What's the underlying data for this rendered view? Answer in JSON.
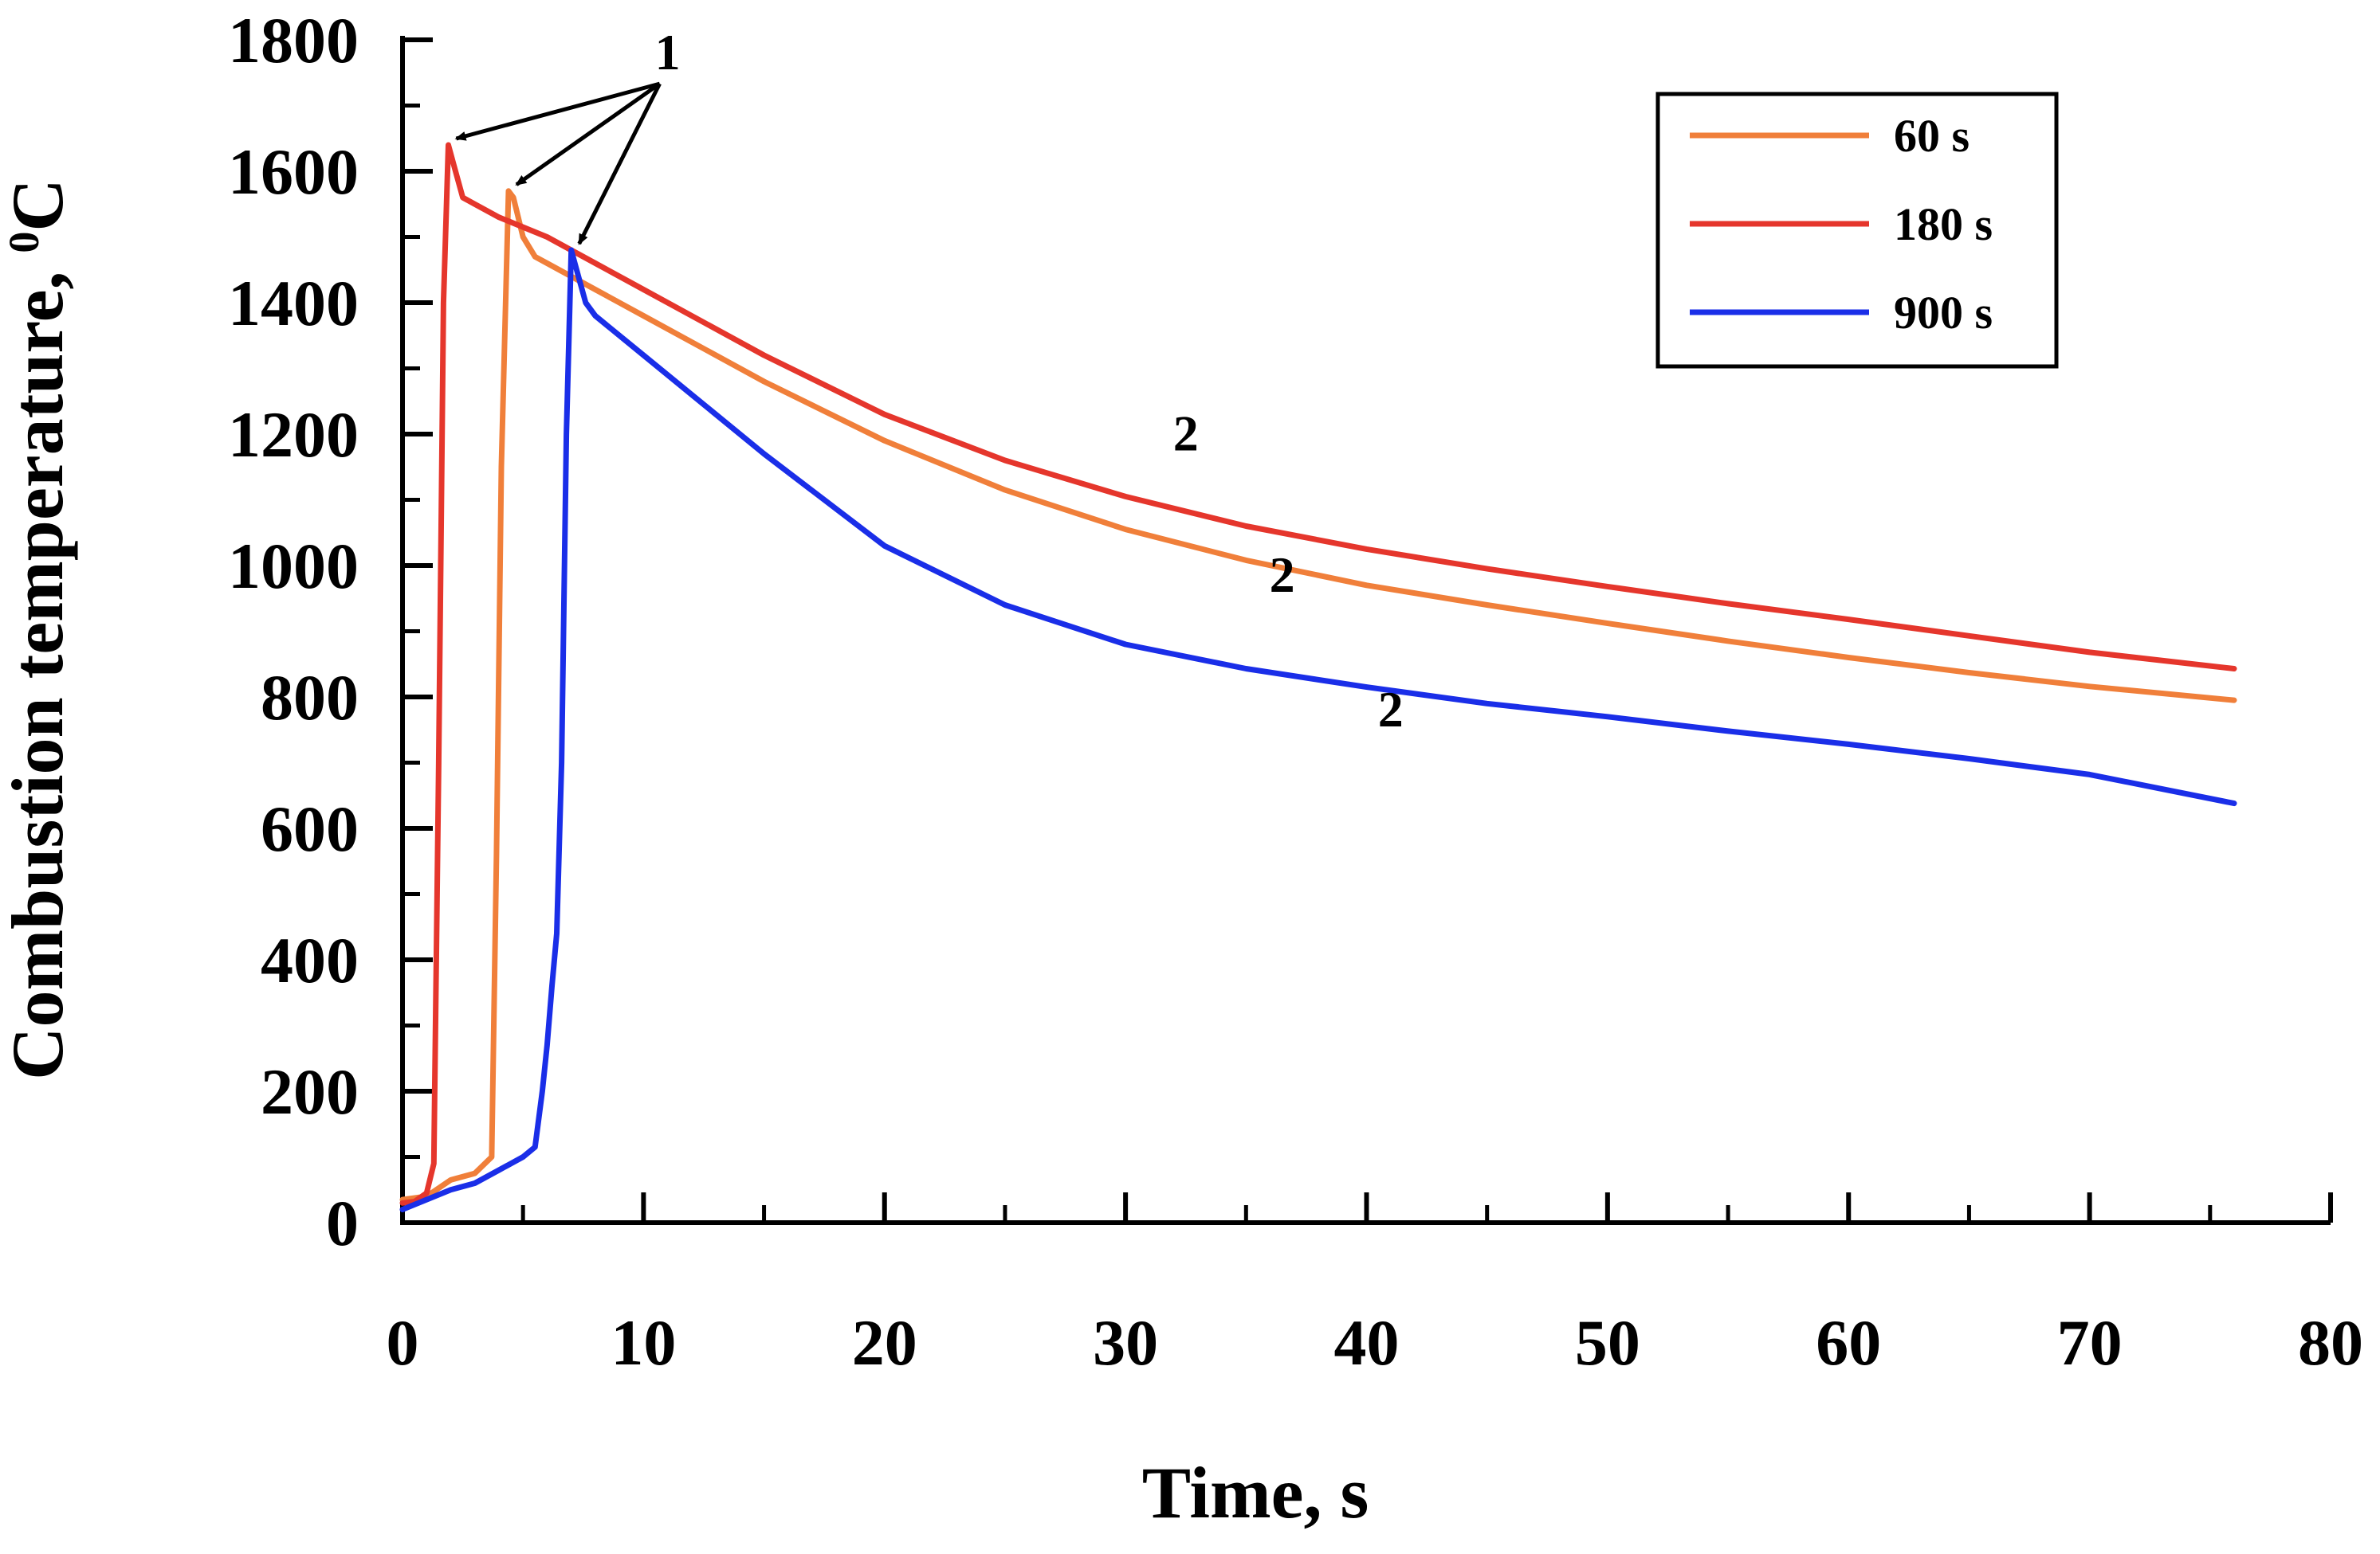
{
  "chart_data": {
    "type": "line",
    "title": "",
    "xlabel": "Time, s",
    "ylabel_main": "Combustion temperature, ",
    "ylabel_exp": "0",
    "ylabel_unit": "C",
    "xlim": [
      0,
      80
    ],
    "ylim": [
      0,
      1800
    ],
    "xticks": [
      0,
      10,
      20,
      30,
      40,
      50,
      60,
      70,
      80
    ],
    "yticks": [
      0,
      200,
      400,
      600,
      800,
      1000,
      1200,
      1400,
      1600,
      1800
    ],
    "grid": false,
    "legend_position": "top-right",
    "colors": {
      "60 s": "#f07f3a",
      "180 s": "#e5362c",
      "900 s": "#1a2ee8"
    },
    "series": [
      {
        "name": "60 s",
        "x": [
          0,
          1,
          2,
          3,
          3.7,
          3.9,
          4.1,
          4.4,
          4.6,
          5,
          5.5,
          6,
          8,
          10,
          15,
          20,
          25,
          30,
          35,
          40,
          45,
          50,
          55,
          60,
          65,
          70,
          76
        ],
        "y": [
          35,
          40,
          65,
          75,
          100,
          560,
          1150,
          1570,
          1560,
          1500,
          1470,
          1460,
          1420,
          1380,
          1280,
          1190,
          1115,
          1055,
          1008,
          970,
          940,
          912,
          885,
          860,
          837,
          816,
          795
        ]
      },
      {
        "name": "180 s",
        "x": [
          0,
          0.5,
          1,
          1.3,
          1.5,
          1.7,
          1.9,
          2.2,
          2.5,
          3,
          4,
          5,
          6,
          8,
          10,
          15,
          20,
          25,
          30,
          35,
          40,
          45,
          50,
          55,
          60,
          65,
          70,
          76
        ],
        "y": [
          30,
          32,
          45,
          90,
          700,
          1400,
          1640,
          1600,
          1560,
          1550,
          1530,
          1515,
          1500,
          1460,
          1420,
          1320,
          1230,
          1160,
          1105,
          1060,
          1025,
          995,
          968,
          942,
          918,
          893,
          868,
          843
        ]
      },
      {
        "name": "900 s",
        "x": [
          0,
          1,
          2,
          3,
          4,
          5,
          5.5,
          5.8,
          6.0,
          6.2,
          6.4,
          6.6,
          6.8,
          7.0,
          7.3,
          7.6,
          8,
          10,
          15,
          20,
          25,
          30,
          35,
          40,
          45,
          50,
          55,
          60,
          65,
          70,
          76
        ],
        "y": [
          20,
          35,
          50,
          60,
          80,
          100,
          115,
          200,
          270,
          360,
          440,
          700,
          1200,
          1480,
          1440,
          1400,
          1380,
          1320,
          1170,
          1030,
          940,
          880,
          843,
          815,
          790,
          770,
          748,
          728,
          706,
          682,
          638
        ]
      }
    ],
    "annotations": [
      {
        "text": "1",
        "x": 11,
        "y": 1755,
        "arrows_to": [
          [
            1.9,
            1640
          ],
          [
            4.4,
            1570
          ],
          [
            7.0,
            1480
          ]
        ]
      },
      {
        "text": "2",
        "x": 32.5,
        "y": 1175
      },
      {
        "text": "2",
        "x": 36.5,
        "y": 960
      },
      {
        "text": "2",
        "x": 41,
        "y": 755
      }
    ]
  }
}
